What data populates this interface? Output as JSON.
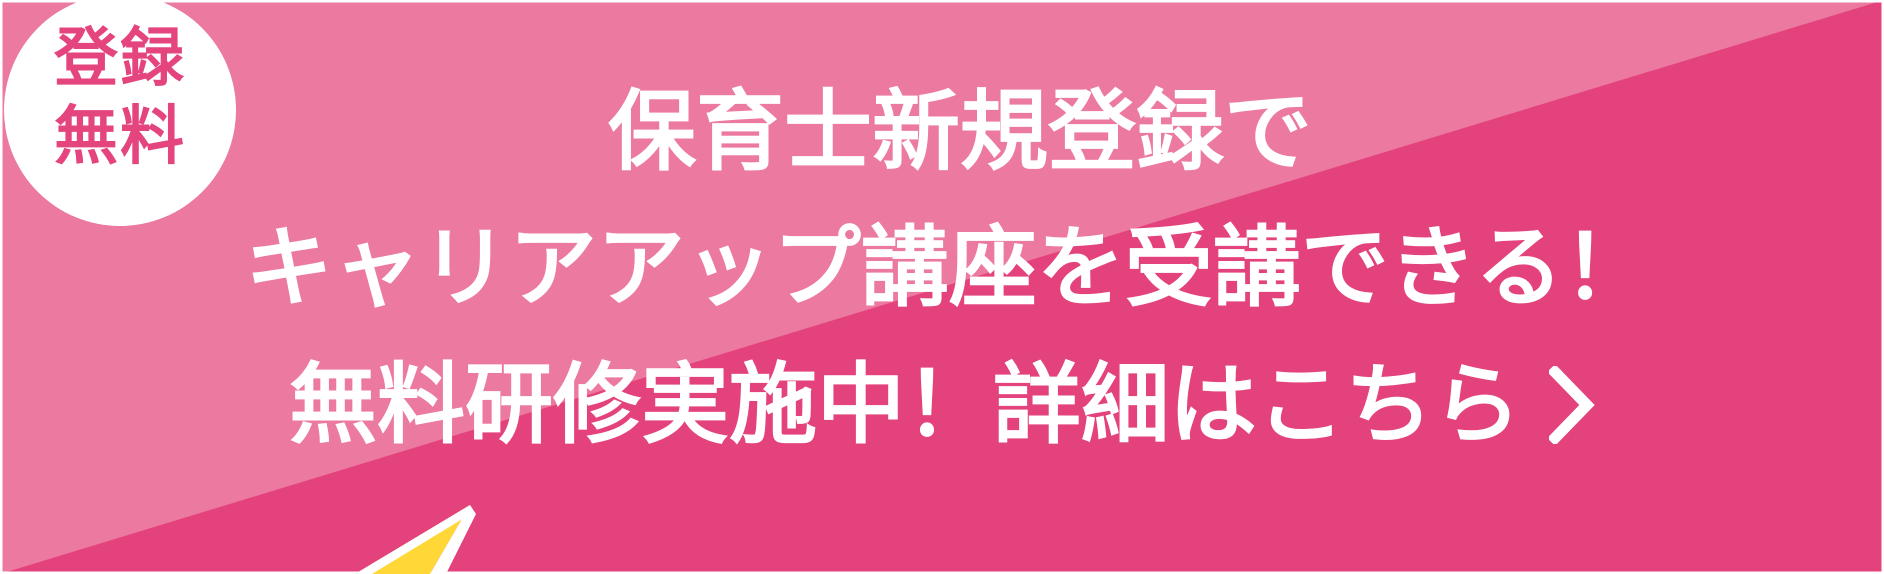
{
  "banner": {
    "badge": {
      "line1": "登録",
      "line2": "無料"
    },
    "headline": {
      "line1": "保育士新規登録で",
      "line2": "キャリアアップ講座を受講できる！",
      "line3": "無料研修実施中！詳細はこちら"
    },
    "colors": {
      "pink_light": "#ec79a0",
      "pink_dark": "#e3427c",
      "badge_text": "#e5457f",
      "text": "#ffffff",
      "accent_yellow": "#ffd736"
    },
    "icons": {
      "cta_arrow": "chevron-right-icon",
      "decoration": "pencil-tip-icon"
    }
  }
}
